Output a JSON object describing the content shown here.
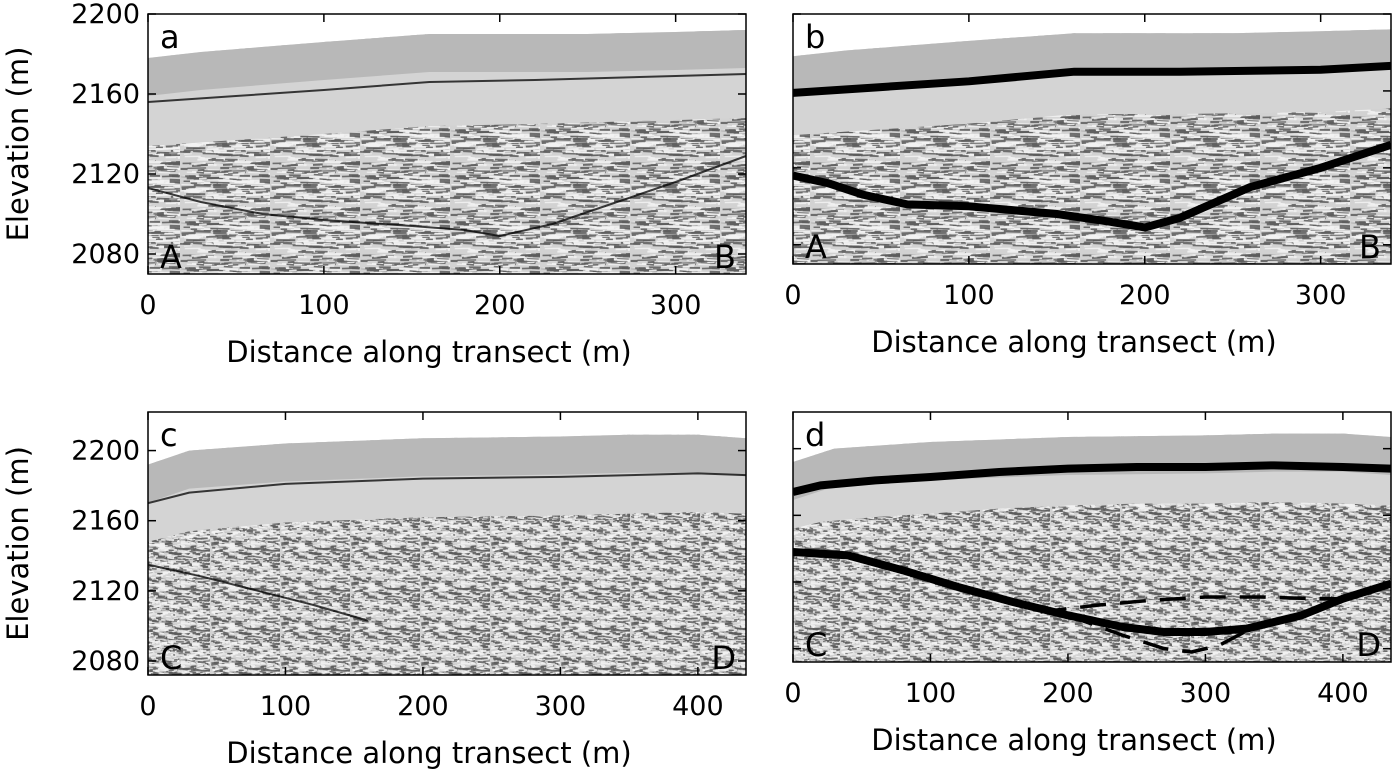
{
  "chart_data": [
    {
      "panel": "a",
      "type": "line",
      "image_kind": "GPR radargram",
      "xlabel": "Distance along transect (m)",
      "ylabel": "Elevation (m)",
      "xlim": [
        0,
        340
      ],
      "ylim": [
        2070,
        2200
      ],
      "xticks": [
        0,
        100,
        200,
        300
      ],
      "yticks": [
        2080,
        2120,
        2160,
        2200
      ],
      "corner_labels": [
        "A",
        "B"
      ],
      "noise": "layered",
      "series": [
        {
          "role": "surface",
          "x": [
            0,
            30,
            100,
            160,
            200,
            250,
            300,
            340
          ],
          "y": [
            2178,
            2181,
            2186,
            2190,
            2190,
            2190,
            2191,
            2192
          ]
        },
        {
          "role": "firn-reflector",
          "style": "faint",
          "x": [
            0,
            50,
            100,
            160,
            220,
            300,
            340
          ],
          "y": [
            2156,
            2159,
            2162,
            2166,
            2167,
            2169,
            2170
          ]
        },
        {
          "role": "bed-reflector",
          "style": "faint",
          "x": [
            0,
            30,
            65,
            100,
            150,
            180,
            200,
            230,
            260,
            300,
            340
          ],
          "y": [
            2113,
            2106,
            2100,
            2097,
            2094,
            2092,
            2089,
            2095,
            2104,
            2116,
            2129
          ]
        }
      ]
    },
    {
      "panel": "b",
      "type": "line",
      "image_kind": "GPR radargram",
      "xlabel": "Distance along transect (m)",
      "ylabel": "",
      "xlim": [
        0,
        340
      ],
      "ylim": [
        2070,
        2200
      ],
      "xticks": [
        0,
        100,
        200,
        300
      ],
      "yticks": [
        2080,
        2120,
        2160,
        2200
      ],
      "corner_labels": [
        "A",
        "B"
      ],
      "noise": "layered",
      "series": [
        {
          "role": "surface",
          "x": [
            0,
            30,
            100,
            160,
            200,
            250,
            300,
            340
          ],
          "y": [
            2178,
            2181,
            2186,
            2190,
            2190,
            2190,
            2191,
            2192
          ]
        },
        {
          "role": "firn-reflector",
          "style": "picked",
          "x": [
            0,
            50,
            100,
            160,
            220,
            300,
            340
          ],
          "y": [
            2159,
            2162,
            2165,
            2170,
            2170,
            2171,
            2173
          ]
        },
        {
          "role": "bed-reflector",
          "style": "picked",
          "x": [
            0,
            20,
            40,
            65,
            100,
            150,
            180,
            200,
            220,
            260,
            300,
            340
          ],
          "y": [
            2116,
            2112,
            2106,
            2101,
            2100,
            2096,
            2092,
            2089,
            2094,
            2110,
            2120,
            2132
          ]
        }
      ]
    },
    {
      "panel": "c",
      "type": "line",
      "image_kind": "GPR radargram",
      "xlabel": "Distance along transect (m)",
      "ylabel": "Elevation (m)",
      "xlim": [
        0,
        435
      ],
      "ylim": [
        2072,
        2222
      ],
      "xticks": [
        0,
        100,
        200,
        300,
        400
      ],
      "yticks": [
        2080,
        2120,
        2160,
        2200
      ],
      "corner_labels": [
        "C",
        "D"
      ],
      "noise": "speckle",
      "series": [
        {
          "role": "surface",
          "x": [
            0,
            30,
            100,
            200,
            300,
            350,
            400,
            435
          ],
          "y": [
            2192,
            2200,
            2204,
            2207,
            2208,
            2209,
            2209,
            2207
          ]
        },
        {
          "role": "firn-reflector",
          "style": "faint",
          "x": [
            0,
            30,
            100,
            200,
            300,
            400,
            435
          ],
          "y": [
            2170,
            2176,
            2181,
            2184,
            2185,
            2187,
            2186
          ]
        },
        {
          "role": "bed-reflector",
          "style": "faint",
          "x": [
            0,
            40,
            80,
            120,
            160
          ],
          "y": [
            2135,
            2128,
            2120,
            2112,
            2103
          ]
        }
      ]
    },
    {
      "panel": "d",
      "type": "line",
      "image_kind": "GPR radargram",
      "xlabel": "Distance along transect (m)",
      "ylabel": "",
      "xlim": [
        0,
        435
      ],
      "ylim": [
        2072,
        2222
      ],
      "xticks": [
        0,
        100,
        200,
        300,
        400
      ],
      "yticks": [
        2080,
        2120,
        2160,
        2200
      ],
      "corner_labels": [
        "C",
        "D"
      ],
      "noise": "speckle",
      "series": [
        {
          "role": "surface",
          "x": [
            0,
            30,
            100,
            200,
            300,
            350,
            400,
            435
          ],
          "y": [
            2192,
            2200,
            2204,
            2207,
            2208,
            2209,
            2209,
            2207
          ]
        },
        {
          "role": "firn-reflector",
          "style": "picked",
          "x": [
            0,
            20,
            60,
            100,
            150,
            200,
            250,
            300,
            350,
            400,
            435
          ],
          "y": [
            2174,
            2178,
            2181,
            2183,
            2186,
            2188,
            2189,
            2189,
            2190,
            2189,
            2188
          ]
        },
        {
          "role": "bed-reflector",
          "style": "picked",
          "x": [
            0,
            40,
            80,
            120,
            160,
            200,
            240,
            270,
            300,
            330,
            370,
            400,
            435
          ],
          "y": [
            2138,
            2136,
            2127,
            2117,
            2108,
            2100,
            2093,
            2090,
            2090,
            2092,
            2100,
            2110,
            2119
          ]
        },
        {
          "role": "alt-bed-reflector",
          "style": "dashed",
          "x": [
            180,
            220,
            260,
            300,
            340,
            380,
            400
          ],
          "y": [
            2102,
            2106,
            2109,
            2111,
            2111,
            2110,
            2110
          ]
        },
        {
          "role": "alt-bed-reflector-lower",
          "style": "dashed",
          "x": [
            200,
            240,
            270,
            290,
            310,
            340
          ],
          "y": [
            2100,
            2088,
            2080,
            2078,
            2082,
            2095
          ]
        }
      ]
    }
  ]
}
